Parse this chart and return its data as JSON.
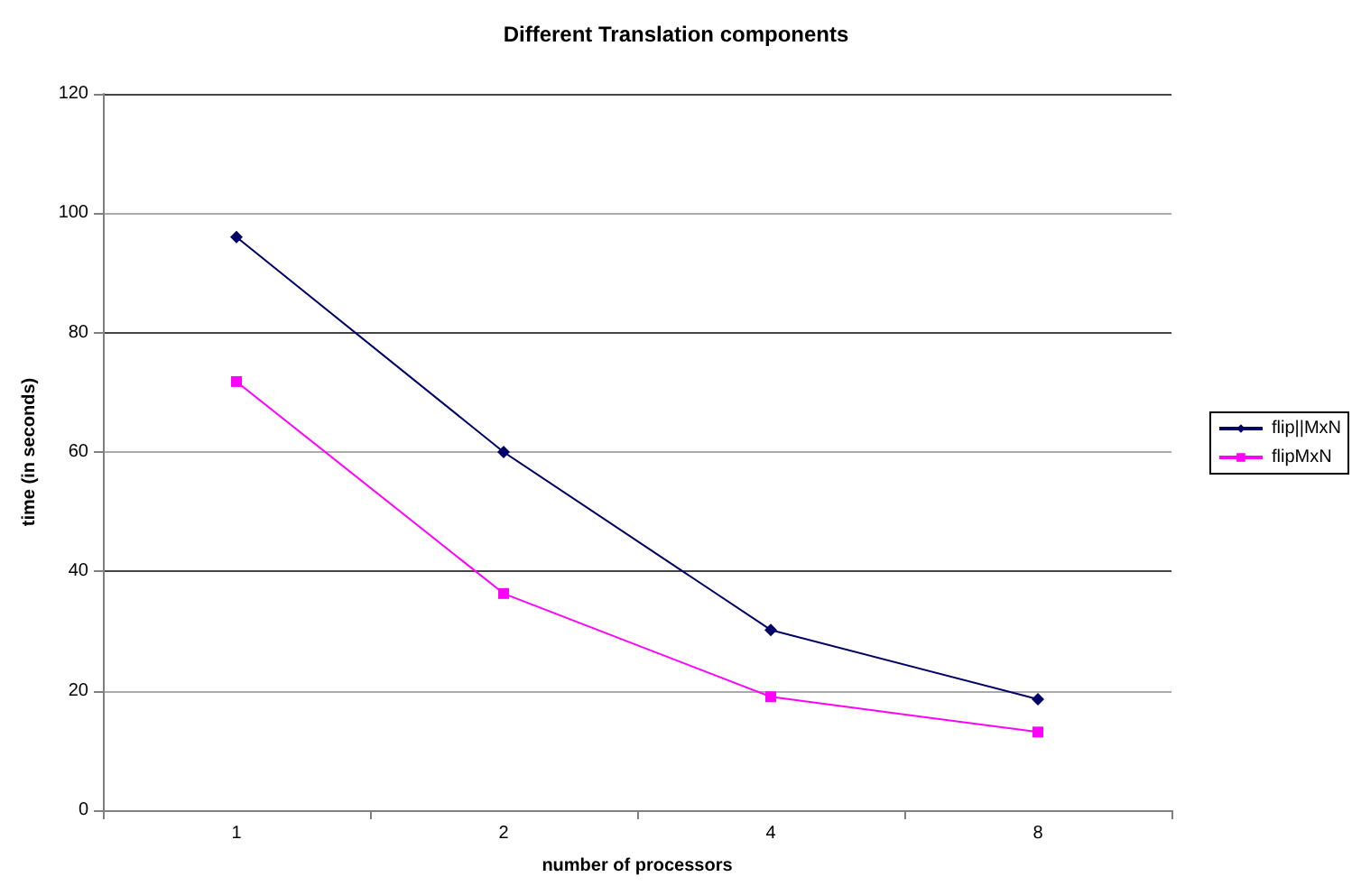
{
  "chart_data": {
    "type": "line",
    "title": "Different Translation components",
    "xlabel": "number of processors",
    "ylabel": "time (in seconds)",
    "categories": [
      "1",
      "2",
      "4",
      "8"
    ],
    "series": [
      {
        "name": "flip||MxN",
        "color": "#000066",
        "marker": "diamond",
        "values": [
          96,
          60,
          30.2,
          18.6
        ]
      },
      {
        "name": "flipMxN",
        "color": "#ff00ff",
        "marker": "square",
        "values": [
          71.8,
          36.3,
          19,
          13.1
        ]
      }
    ],
    "ylim": [
      0,
      120
    ],
    "yticks": [
      0,
      20,
      40,
      60,
      80,
      100,
      120
    ],
    "grid": "y",
    "legend": "right",
    "line_style": "solid"
  }
}
